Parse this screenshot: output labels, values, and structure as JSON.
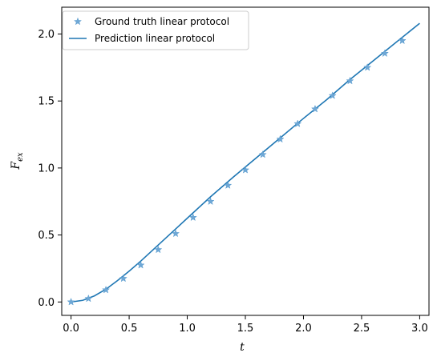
{
  "chart_data": {
    "type": "line",
    "title": "",
    "xlabel": "t",
    "ylabel_main": "F",
    "ylabel_sub": "ex",
    "xlim": [
      -0.08,
      3.08
    ],
    "ylim": [
      -0.1,
      2.2
    ],
    "xticks": [
      0.0,
      0.5,
      1.0,
      1.5,
      2.0,
      2.5,
      3.0
    ],
    "xtick_labels": [
      "0.0",
      "0.5",
      "1.0",
      "1.5",
      "2.0",
      "2.5",
      "3.0"
    ],
    "yticks": [
      0.0,
      0.5,
      1.0,
      1.5,
      2.0
    ],
    "ytick_labels": [
      "0.0",
      "0.5",
      "1.0",
      "1.5",
      "2.0"
    ],
    "legend_position": "top-left",
    "series": [
      {
        "name": "Ground truth linear protocol",
        "style": "star-markers",
        "color": "#6fa8d6",
        "x": [
          0.0,
          0.15,
          0.3,
          0.45,
          0.6,
          0.75,
          0.9,
          1.05,
          1.2,
          1.35,
          1.5,
          1.65,
          1.8,
          1.95,
          2.1,
          2.25,
          2.4,
          2.55,
          2.7,
          2.85
        ],
        "y": [
          0.0,
          0.025,
          0.09,
          0.175,
          0.275,
          0.39,
          0.51,
          0.63,
          0.75,
          0.87,
          0.985,
          1.1,
          1.215,
          1.33,
          1.44,
          1.54,
          1.65,
          1.75,
          1.855,
          1.95
        ]
      },
      {
        "name": "Prediction linear protocol",
        "style": "line",
        "color": "#1f77b4",
        "x": [
          0.0,
          0.1,
          0.2,
          0.3,
          0.4,
          0.5,
          0.6,
          0.7,
          0.8,
          0.9,
          1.0,
          1.2,
          1.4,
          1.6,
          1.8,
          2.0,
          2.2,
          2.4,
          2.6,
          2.8,
          3.0
        ],
        "y": [
          0.0,
          0.012,
          0.045,
          0.095,
          0.16,
          0.23,
          0.305,
          0.385,
          0.465,
          0.545,
          0.625,
          0.785,
          0.935,
          1.08,
          1.225,
          1.37,
          1.51,
          1.66,
          1.8,
          1.94,
          2.08
        ]
      }
    ]
  }
}
